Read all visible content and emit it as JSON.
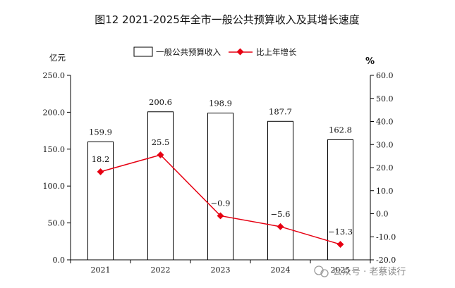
{
  "chart_data": {
    "type": "bar",
    "title": "图12 2021-2025年全市一般公共预算收入及其增长速度",
    "categories": [
      "2021",
      "2022",
      "2023",
      "2024",
      "2025"
    ],
    "left_axis": {
      "label": "亿元",
      "range": [
        0,
        250
      ],
      "ticks": [
        "0.0",
        "50.0",
        "100.0",
        "150.0",
        "200.0",
        "250.0"
      ]
    },
    "right_axis": {
      "label": "%",
      "range": [
        -20,
        60
      ],
      "ticks": [
        "-20.0",
        "-10.0",
        "0.0",
        "10.0",
        "20.0",
        "30.0",
        "40.0",
        "50.0",
        "60.0"
      ]
    },
    "series": [
      {
        "name": "一般公共预算收入",
        "type": "bar",
        "axis": "left",
        "values": [
          159.9,
          200.6,
          198.9,
          187.7,
          162.8
        ],
        "labels": [
          "159.9",
          "200.6",
          "198.9",
          "187.7",
          "162.8"
        ],
        "color": "#ffffff",
        "stroke": "#000000"
      },
      {
        "name": "比上年增长",
        "type": "line",
        "axis": "right",
        "values": [
          18.2,
          25.5,
          -0.9,
          -5.6,
          -13.3
        ],
        "labels": [
          "18.2",
          "25.5",
          "−0.9",
          "−5.6",
          "−13.3"
        ],
        "color": "#e60012"
      }
    ],
    "legend": "top-center",
    "grid": false
  },
  "watermark": {
    "text": "公众号 · 老蔡读行"
  }
}
